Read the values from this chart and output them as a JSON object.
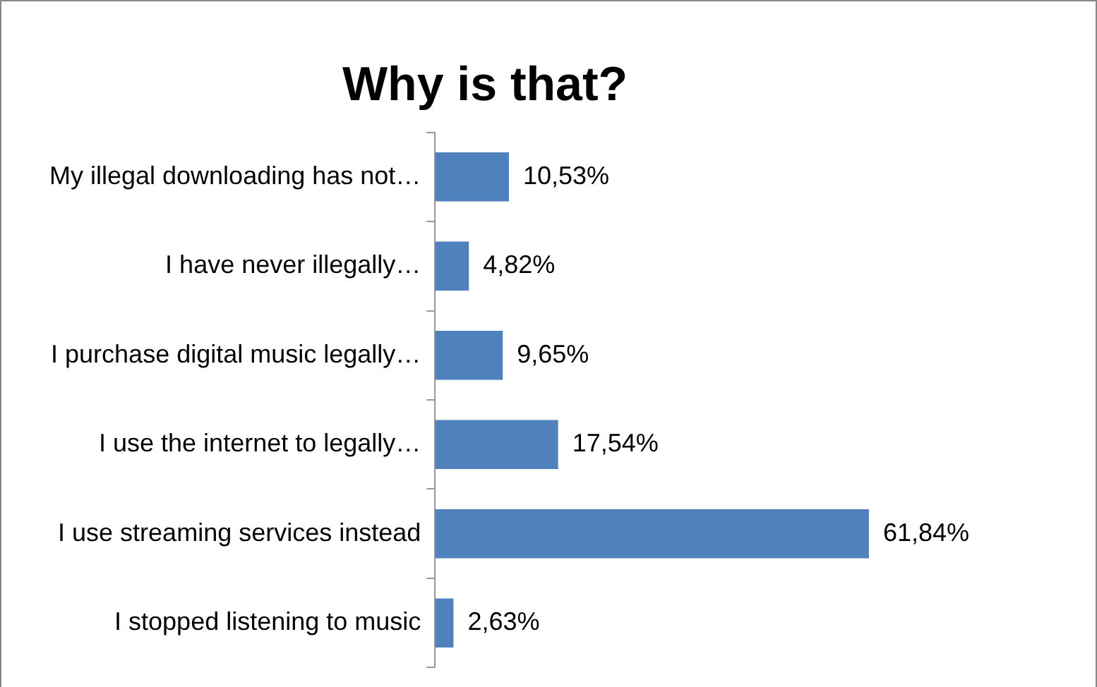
{
  "chart_data": {
    "type": "bar",
    "orientation": "horizontal",
    "title": "Why is that?",
    "categories": [
      "My illegal downloading has not…",
      "I have never illegally…",
      "I purchase digital music legally…",
      "I use the internet to legally…",
      "I use streaming services instead",
      "I stopped listening to music"
    ],
    "values": [
      10.53,
      4.82,
      9.65,
      17.54,
      61.84,
      2.63
    ],
    "value_labels": [
      "10,53%",
      "4,82%",
      "9,65%",
      "17,54%",
      "61,84%",
      "2,63%"
    ],
    "color": "#4f81bd"
  }
}
